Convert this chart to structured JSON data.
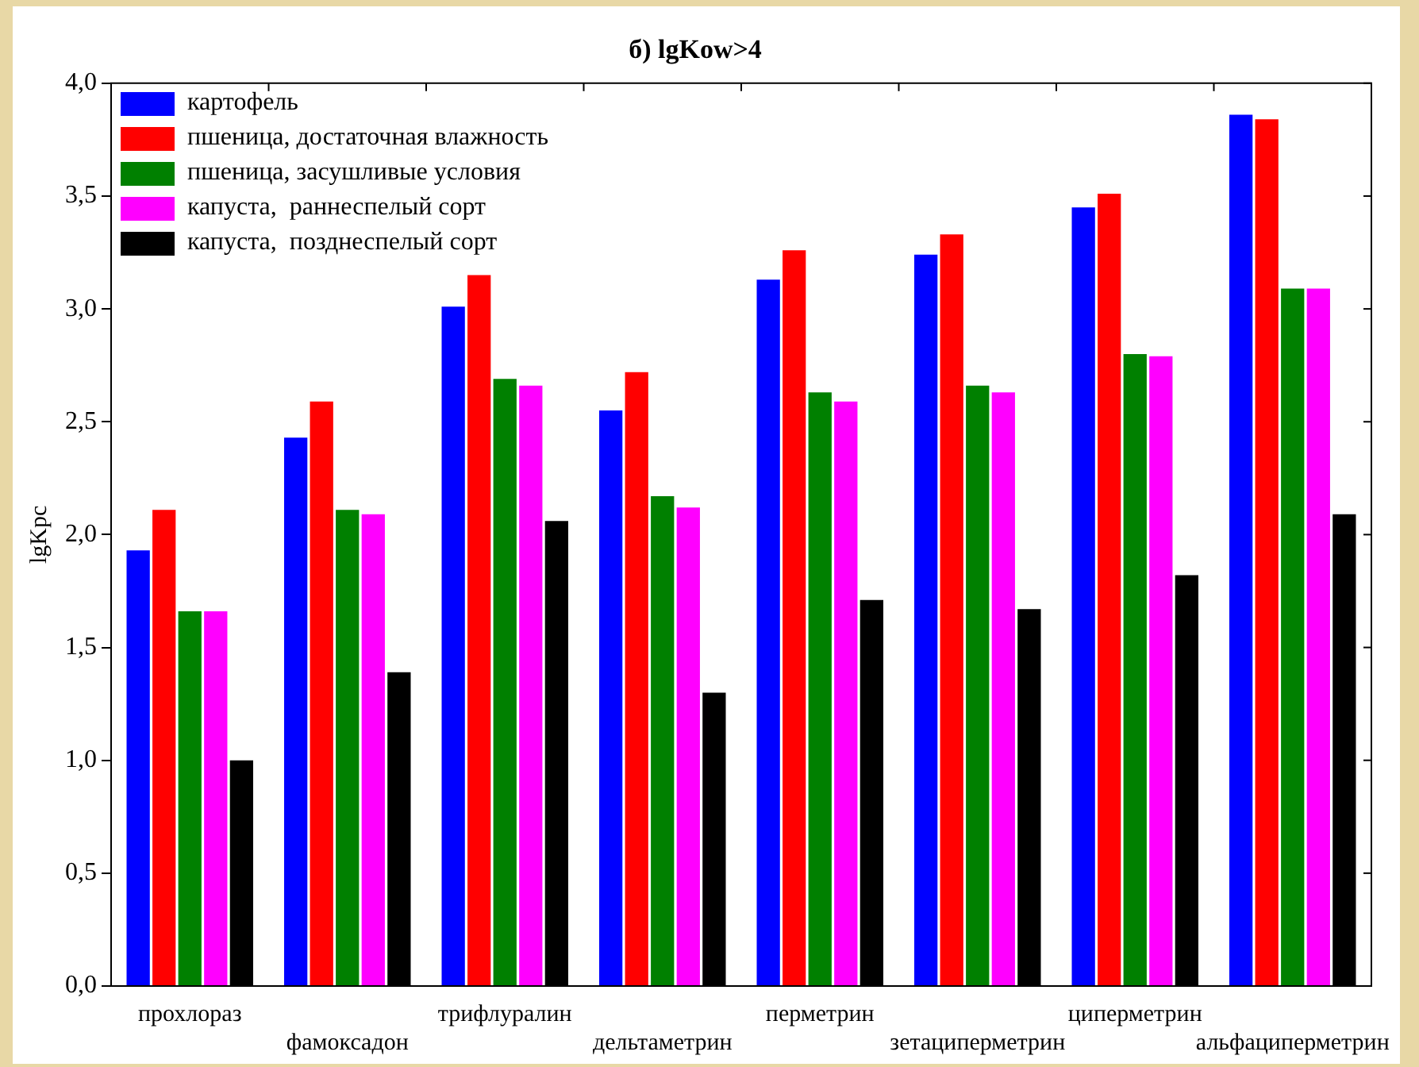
{
  "chart_data": {
    "type": "bar",
    "title": "б) lgKow>4",
    "ylabel": "lgKpc",
    "categories": [
      "прохлораз",
      "фамоксадон",
      "трифлуралин",
      "дельтаметрин",
      "перметрин",
      "зетациперметрин",
      "циперметрин",
      "альфациперметрин"
    ],
    "series": [
      {
        "name": "картофель",
        "color": "#0000ff",
        "values": [
          1.93,
          2.43,
          3.01,
          2.55,
          3.13,
          3.24,
          3.45,
          3.86
        ]
      },
      {
        "name": "пшеница, достаточная влажность",
        "color": "#ff0000",
        "values": [
          2.11,
          2.59,
          3.15,
          2.72,
          3.26,
          3.33,
          3.51,
          3.84
        ]
      },
      {
        "name": "пшеница, засушливые условия",
        "color": "#008000",
        "values": [
          1.66,
          2.11,
          2.69,
          2.17,
          2.63,
          2.66,
          2.8,
          3.09
        ]
      },
      {
        "name": "капуста,  раннеспелый сорт",
        "color": "#ff00ff",
        "values": [
          1.66,
          2.09,
          2.66,
          2.12,
          2.59,
          2.63,
          2.79,
          3.09
        ]
      },
      {
        "name": "капуста,  позднеспелый сорт",
        "color": "#000000",
        "values": [
          1.0,
          1.39,
          2.06,
          1.3,
          1.71,
          1.67,
          1.82,
          2.09
        ]
      }
    ],
    "ylim": [
      0,
      4
    ],
    "yticks": [
      {
        "value": 0,
        "label": "0,0"
      },
      {
        "value": 0.5,
        "label": "0,5"
      },
      {
        "value": 1,
        "label": "1,0"
      },
      {
        "value": 1.5,
        "label": "1,5"
      },
      {
        "value": 2,
        "label": "2,0"
      },
      {
        "value": 2.5,
        "label": "2,5"
      },
      {
        "value": 3,
        "label": "3,0"
      },
      {
        "value": 3.5,
        "label": "3,5"
      },
      {
        "value": 4,
        "label": "4,0"
      }
    ],
    "grid": false,
    "legend": "top left"
  }
}
